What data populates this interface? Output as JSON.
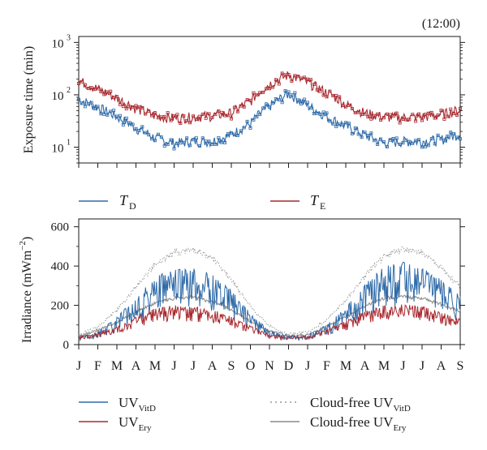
{
  "colors": {
    "td": "#2e6aa8",
    "te": "#a8282e",
    "cf_vitd": "#9a9a9a",
    "cf_ery": "#8a8a8a",
    "axis": "#1a1a1a"
  },
  "chart_data": [
    {
      "type": "line",
      "title": "(12:00)",
      "ylabel": "Exposure time (min)",
      "yscale": "log",
      "ylim": [
        5,
        1300
      ],
      "yticks": [
        {
          "value": 10,
          "label": "10"
        },
        {
          "value": 100,
          "label": "10"
        },
        {
          "value": 1000,
          "label": "10"
        }
      ],
      "yticks_exp": [
        "1",
        "2",
        "3"
      ],
      "x": [
        0,
        1,
        2,
        3,
        4,
        5,
        6,
        7,
        8,
        9,
        10,
        11,
        12,
        13,
        14,
        15,
        16,
        17,
        18,
        19,
        20
      ],
      "xlim": [
        0,
        20
      ],
      "series": [
        {
          "name": "T",
          "sub": "D",
          "values": [
            82,
            58,
            38,
            23,
            15,
            12,
            13,
            13,
            17,
            28,
            60,
            105,
            62,
            38,
            25,
            17,
            12,
            13,
            13,
            14,
            18
          ]
        },
        {
          "name": "T",
          "sub": "E",
          "values": [
            185,
            130,
            85,
            55,
            40,
            36,
            38,
            40,
            45,
            75,
            160,
            240,
            170,
            110,
            65,
            45,
            38,
            37,
            38,
            42,
            52
          ]
        }
      ]
    },
    {
      "type": "line",
      "ylabel": "Irradiance (mWm",
      "ylabel_sup": "−2",
      "ylabel_close": ")",
      "ylim": [
        0,
        640
      ],
      "yticks": [
        0,
        200,
        400,
        600
      ],
      "categories": [
        "J",
        "F",
        "M",
        "A",
        "M",
        "J",
        "J",
        "A",
        "S",
        "O",
        "N",
        "D",
        "J",
        "F",
        "M",
        "A",
        "M",
        "J",
        "J",
        "A",
        "S"
      ],
      "x": [
        0,
        1,
        2,
        3,
        4,
        5,
        6,
        7,
        8,
        9,
        10,
        11,
        12,
        13,
        14,
        15,
        16,
        17,
        18,
        19,
        20
      ],
      "series": [
        {
          "name": "UV",
          "sub": "VitD",
          "values": [
            40,
            65,
            140,
            240,
            350,
            380,
            390,
            360,
            280,
            160,
            70,
            45,
            50,
            100,
            190,
            310,
            400,
            420,
            400,
            330,
            250
          ]
        },
        {
          "name": "UV",
          "sub": "Ery",
          "values": [
            40,
            60,
            90,
            140,
            185,
            200,
            195,
            180,
            145,
            95,
            55,
            40,
            42,
            75,
            120,
            170,
            200,
            205,
            195,
            165,
            130
          ]
        },
        {
          "name": "Cloud-free UV",
          "sub": "VitD",
          "values": [
            50,
            90,
            180,
            300,
            420,
            480,
            500,
            450,
            340,
            200,
            95,
            55,
            65,
            130,
            230,
            360,
            460,
            500,
            480,
            400,
            300
          ]
        },
        {
          "name": "Cloud-free UV",
          "sub": "Ery",
          "values": [
            45,
            75,
            115,
            170,
            215,
            240,
            245,
            225,
            180,
            120,
            70,
            45,
            50,
            95,
            145,
            200,
            240,
            250,
            240,
            210,
            170
          ]
        }
      ]
    }
  ]
}
